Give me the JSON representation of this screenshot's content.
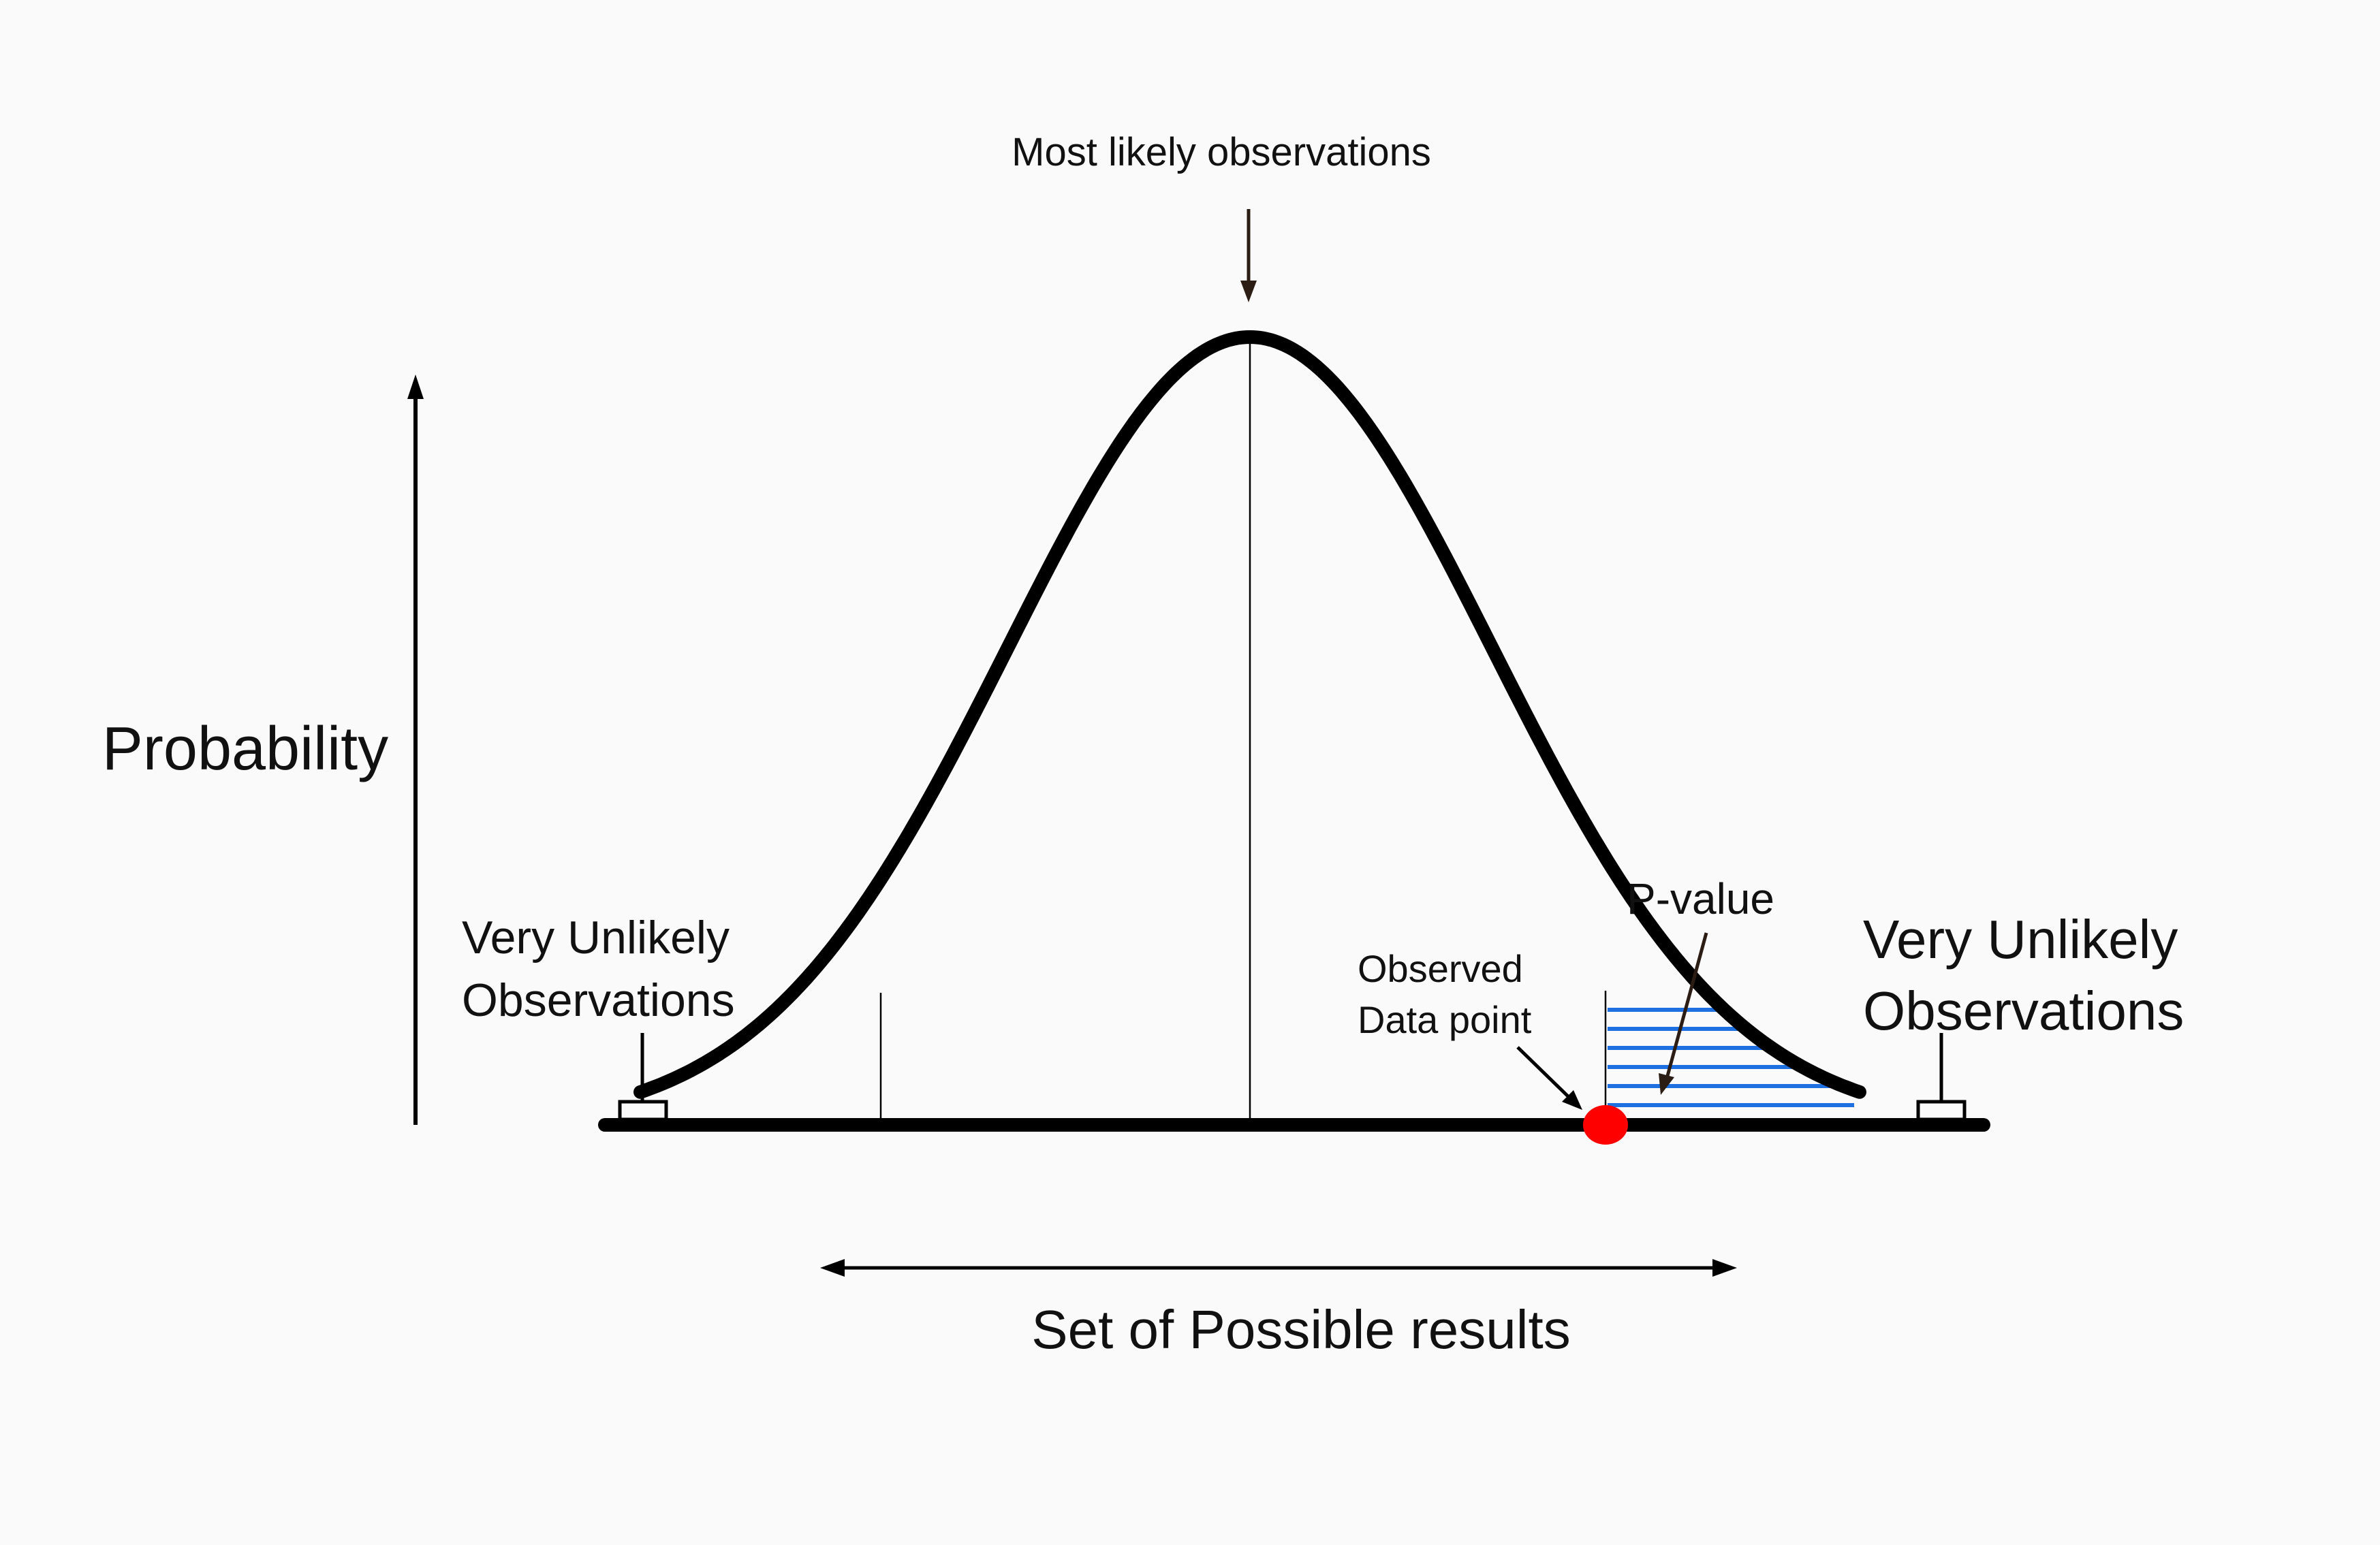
{
  "labels": {
    "top": "Most likely observations",
    "y_axis": "Probability",
    "left_tail_line1": "Very Unlikely",
    "left_tail_line2": "Observations",
    "right_tail_line1": "Very Unlikely",
    "right_tail_line2": "Observations",
    "observed_line1": "Observed",
    "observed_line2": "Data point",
    "p_value": "P-value",
    "x_axis": "Set of Possible results"
  },
  "colors": {
    "curve": "#000000",
    "observed_point": "#ff0000",
    "p_value_hatch": "#1e6fe0",
    "annotation_arrow": "#2b1d14",
    "background": "#fafafa"
  }
}
